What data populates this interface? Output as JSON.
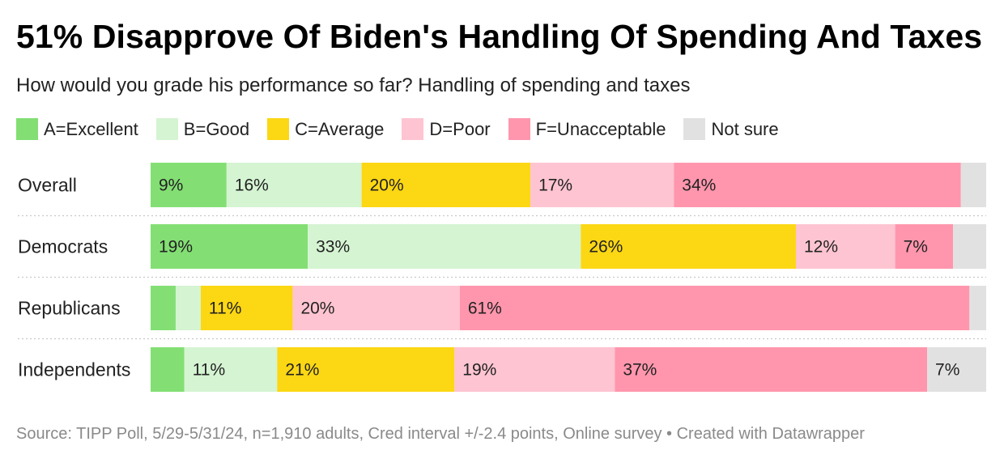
{
  "title": "51% Disapprove Of Biden's Handling Of Spending And Taxes",
  "subtitle": "How would you grade his performance so far? Handling of spending and taxes",
  "source": "Source: TIPP Poll, 5/29-5/31/24, n=1,910 adults, Cred interval +/-2.4 points, Online survey • Created with Datawrapper",
  "chart_data": {
    "type": "bar",
    "orientation": "horizontal",
    "stacked": true,
    "unit": "%",
    "title": "51% Disapprove Of Biden's Handling Of Spending And Taxes",
    "subtitle": "How would you grade his performance so far? Handling of spending and taxes",
    "categories": [
      "Overall",
      "Democrats",
      "Republicans",
      "Independents"
    ],
    "xlim": [
      0,
      100
    ],
    "legend_position": "top-left",
    "series": [
      {
        "name": "A=Excellent",
        "key": "excellent",
        "color": "#83df74",
        "values": [
          9,
          19,
          3,
          4
        ]
      },
      {
        "name": "B=Good",
        "key": "good",
        "color": "#d5f4d2",
        "values": [
          16,
          33,
          3,
          11
        ]
      },
      {
        "name": "C=Average",
        "key": "average",
        "color": "#fcd714",
        "values": [
          20,
          26,
          11,
          21
        ]
      },
      {
        "name": "D=Poor",
        "key": "poor",
        "color": "#fec4d1",
        "values": [
          17,
          12,
          20,
          19
        ]
      },
      {
        "name": "F=Unacceptable",
        "key": "unacceptable",
        "color": "#ff96ad",
        "values": [
          34,
          7,
          61,
          37
        ]
      },
      {
        "name": "Not sure",
        "key": "not-sure",
        "color": "#e1e1e1",
        "values": [
          3,
          4,
          2,
          7
        ]
      }
    ],
    "labels": [
      [
        "9%",
        "16%",
        "20%",
        "17%",
        "34%",
        ""
      ],
      [
        "19%",
        "33%",
        "26%",
        "12%",
        "7%",
        ""
      ],
      [
        "",
        "",
        "11%",
        "20%",
        "61%",
        ""
      ],
      [
        "",
        "11%",
        "21%",
        "19%",
        "37%",
        "7%"
      ]
    ]
  }
}
